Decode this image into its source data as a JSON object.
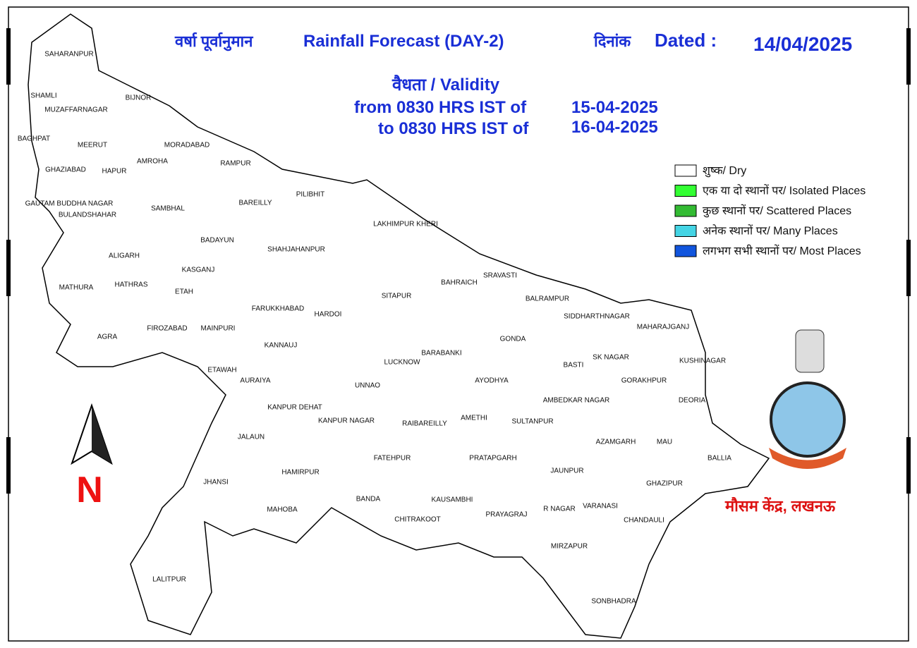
{
  "header": {
    "title_hindi": "वर्षा पूर्वानुमान",
    "title": "Rainfall Forecast (DAY-2)",
    "dated_hindi": "दिनांक",
    "dated": "Dated :",
    "date": "14/04/2025",
    "validity": "वैधता / Validity",
    "from_text": "from 0830 HRS IST of",
    "from_date": "15-04-2025",
    "to_text": "to 0830 HRS IST of",
    "to_date": "16-04-2025"
  },
  "legend": [
    {
      "label": "शुष्क/ Dry",
      "color": "#ffffff"
    },
    {
      "label": "एक या दो स्थानों पर/ Isolated Places",
      "color": "#33ff33"
    },
    {
      "label": "कुछ स्थानों पर/ Scattered Places",
      "color": "#33bb33"
    },
    {
      "label": "अनेक स्थानों पर/ Many Places",
      "color": "#44d4e4"
    },
    {
      "label": "लगभग सभी स्थानों पर/ Most Places",
      "color": "#1155dd"
    }
  ],
  "north": "N",
  "footer": "मौसम केंद्र, लखनऊ",
  "districts": [
    "SAHARANPUR",
    "SHAMLI",
    "MUZAFFARNAGAR",
    "BIJNOR",
    "BAGHPAT",
    "MEERUT",
    "MORADABAD",
    "AMROHA",
    "RAMPUR",
    "GHAZIABAD",
    "HAPUR",
    "PILIBHIT",
    "GAUTAM BUDDHA NAGAR",
    "BAREILLY",
    "SAMBHAL",
    "BULANDSHAHAR",
    "LAKHIMPUR KHERI",
    "BADAYUN",
    "SHAHJAHANPUR",
    "ALIGARH",
    "KASGANJ",
    "SRAVASTI",
    "BAHRAICH",
    "HATHRAS",
    "MATHURA",
    "ETAH",
    "SITAPUR",
    "BALRAMPUR",
    "FARUKKHABAD",
    "HARDOI",
    "SIDDHARTHNAGAR",
    "MAHARAJGANJ",
    "FIROZABAD",
    "MAINPURI",
    "AGRA",
    "GONDA",
    "KANNAUJ",
    "BARABANKI",
    "SK NAGAR",
    "KUSHINAGAR",
    "LUCKNOW",
    "BASTI",
    "ETAWAH",
    "AURAIYA",
    "AYODHYA",
    "GORAKHPUR",
    "UNNAO",
    "AMBEDKAR NAGAR",
    "DEORIA",
    "KANPUR DEHAT",
    "KANPUR NAGAR",
    "AMETHI",
    "SULTANPUR",
    "RAIBAREILLY",
    "JALAUN",
    "AZAMGARH",
    "MAU",
    "BALLIA",
    "FATEHPUR",
    "PRATAPGARH",
    "HAMIRPUR",
    "JAUNPUR",
    "JHANSI",
    "GHAZIPUR",
    "BANDA",
    "KAUSAMBHI",
    "VARANASI",
    "R NAGAR",
    "MAHOBA",
    "PRAYAGRAJ",
    "CHITRAKOOT",
    "CHANDAULI",
    "MIRZAPUR",
    "LALITPUR",
    "SONBHADRA"
  ]
}
